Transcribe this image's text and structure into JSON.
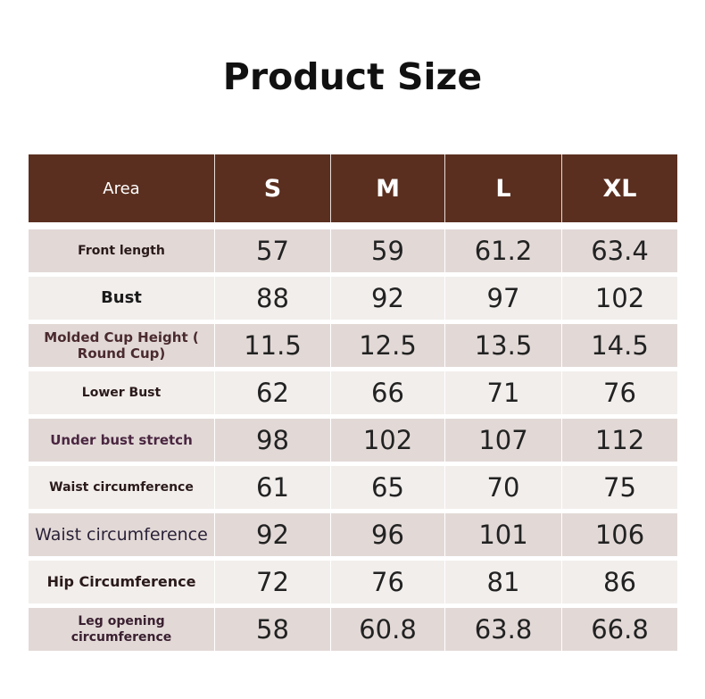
{
  "title": "Product Size",
  "table": {
    "header": [
      "Area",
      "S",
      "M",
      "L",
      "XL"
    ],
    "rows": [
      {
        "label": "Front length",
        "values": [
          "57",
          "59",
          "61.2",
          "63.4"
        ]
      },
      {
        "label": "Bust",
        "values": [
          "88",
          "92",
          "97",
          "102"
        ]
      },
      {
        "label": "Molded Cup Height ( Round Cup)",
        "values": [
          "11.5",
          "12.5",
          "13.5",
          "14.5"
        ]
      },
      {
        "label": "Lower Bust",
        "values": [
          "62",
          "66",
          "71",
          "76"
        ]
      },
      {
        "label": "Under bust stretch",
        "values": [
          "98",
          "102",
          "107",
          "112"
        ]
      },
      {
        "label": "Waist circumference",
        "values": [
          "61",
          "65",
          "70",
          "75"
        ]
      },
      {
        "label": "Waist circumference",
        "values": [
          "92",
          "96",
          "101",
          "106"
        ]
      },
      {
        "label": "Hip Circumference",
        "values": [
          "72",
          "76",
          "81",
          "86"
        ]
      },
      {
        "label": "Leg opening circumference",
        "values": [
          "58",
          "60.8",
          "63.8",
          "66.8"
        ]
      }
    ]
  },
  "colors": {
    "header_bg": "#5a2f1f",
    "row_dark": "#e2d9d7",
    "row_light": "#f2eeec"
  }
}
